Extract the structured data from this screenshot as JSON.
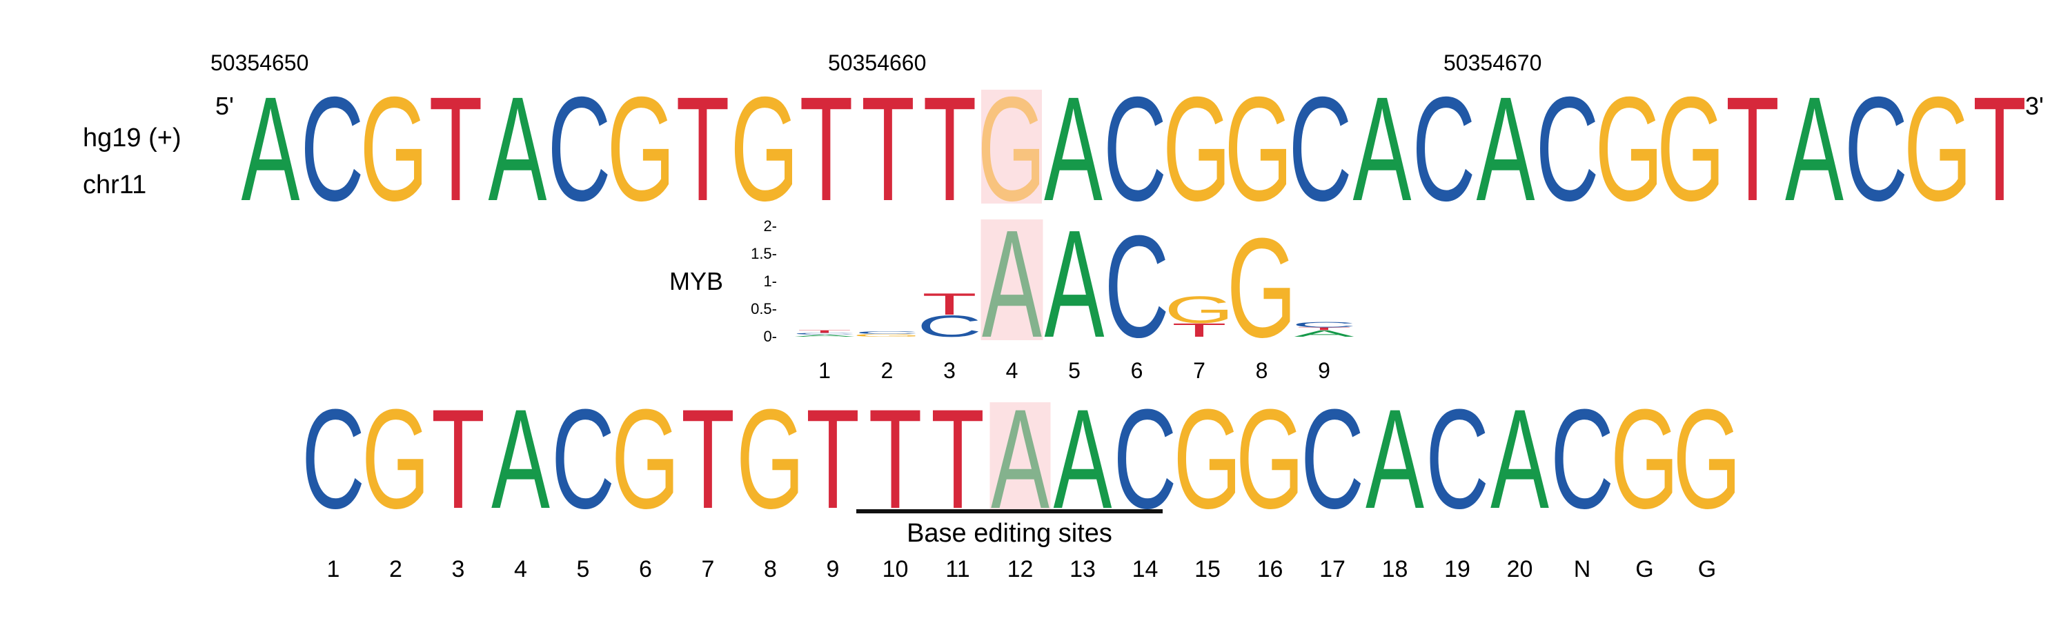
{
  "colors": {
    "A": "#16994a",
    "C": "#2158a6",
    "G": "#f4b32a",
    "T": "#d6283b",
    "highlight": "#fce1e3",
    "faded_G": "#f8c37e",
    "faded_A": "#84b28d"
  },
  "coordinates": [
    "50354650",
    "50354660",
    "50354670"
  ],
  "genome_label": "hg19 (+)",
  "chrom_label": "chr11",
  "five_prime": "5'",
  "three_prime": "3'",
  "reference_sequence": [
    "A",
    "C",
    "G",
    "T",
    "A",
    "C",
    "G",
    "T",
    "G",
    "T",
    "T",
    "T",
    "G",
    "A",
    "C",
    "G",
    "G",
    "C",
    "A",
    "C",
    "A",
    "C",
    "G",
    "G",
    "T",
    "A",
    "C",
    "G",
    "T"
  ],
  "reference_highlight_index": 12,
  "motif": {
    "name": "MYB",
    "y_ticks": [
      "0-",
      "0.5-",
      "1-",
      "1.5-",
      "2-"
    ],
    "y_values": [
      0,
      0.5,
      1,
      1.5,
      2
    ],
    "positions": [
      "1",
      "2",
      "3",
      "4",
      "5",
      "6",
      "7",
      "8",
      "9"
    ],
    "highlight_index": 3,
    "columns": [
      [
        {
          "base": "A",
          "bits": 0.04
        },
        {
          "base": "C",
          "bits": 0.03
        },
        {
          "base": "T",
          "bits": 0.05
        }
      ],
      [
        {
          "base": "G",
          "bits": 0.05
        },
        {
          "base": "C",
          "bits": 0.05
        }
      ],
      [
        {
          "base": "C",
          "bits": 0.4
        },
        {
          "base": "T",
          "bits": 0.4
        }
      ],
      [
        {
          "base": "A",
          "bits": 2.0
        }
      ],
      [
        {
          "base": "A",
          "bits": 2.0
        }
      ],
      [
        {
          "base": "C",
          "bits": 1.9
        }
      ],
      [
        {
          "base": "T",
          "bits": 0.25
        },
        {
          "base": "G",
          "bits": 0.5
        }
      ],
      [
        {
          "base": "G",
          "bits": 1.85
        }
      ],
      [
        {
          "base": "A",
          "bits": 0.12
        },
        {
          "base": "T",
          "bits": 0.05
        },
        {
          "base": "C",
          "bits": 0.1
        }
      ]
    ]
  },
  "guide_sequence": [
    "C",
    "G",
    "T",
    "A",
    "C",
    "G",
    "T",
    "G",
    "T",
    "T",
    "T",
    "A",
    "A",
    "C",
    "G",
    "G",
    "C",
    "A",
    "C",
    "A",
    "C",
    "G",
    "G"
  ],
  "guide_highlight_index": 11,
  "guide_positions": [
    "1",
    "2",
    "3",
    "4",
    "5",
    "6",
    "7",
    "8",
    "9",
    "10",
    "11",
    "12",
    "13",
    "14",
    "15",
    "16",
    "17",
    "18",
    "19",
    "20",
    "N",
    "G",
    "G"
  ],
  "editing_window_label": "Base editing sites",
  "editing_window_start": 10,
  "editing_window_end": 14
}
